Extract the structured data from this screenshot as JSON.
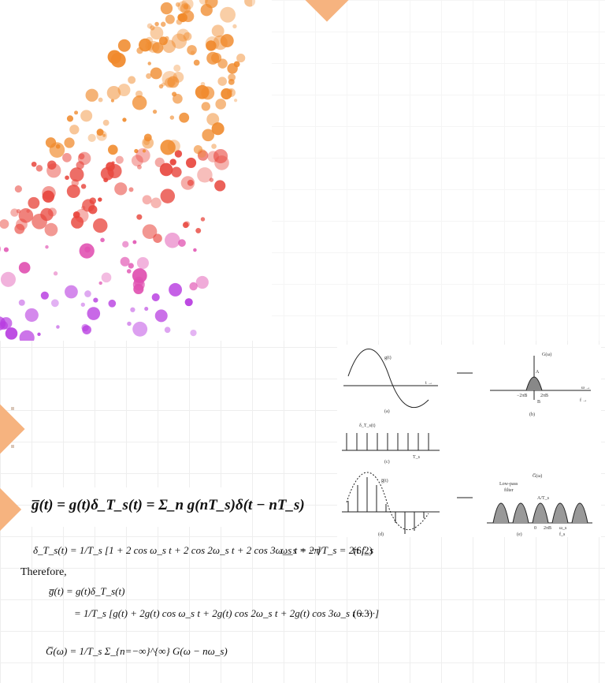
{
  "slide": {
    "therefore_label": "Therefore,"
  },
  "equations": {
    "main": "g̅(t) = g(t)δ_T_s(t) = Σ_n g(nT_s)δ(t − nT_s)",
    "eq_6_2_left": "δ_T_s(t) = 1/T_s [1 + 2 cos ω_s t + 2 cos 2ω_s t + 2 cos 3ω_s t + ···]",
    "eq_6_2_right": "ω_s = 2π/T_s = 2π f_s",
    "eq_6_2_num": "(6.2)",
    "eq_6_3_line1": "g̅(t) = g(t)δ_T_s(t)",
    "eq_6_3_line2": "= 1/T_s [g(t) + 2g(t) cos ω_s t + 2g(t) cos 2ω_s t + 2g(t) cos 3ω_s t + ···]",
    "eq_6_3_num": "(6.3)",
    "spectrum": "G̅(ω) = 1/T_s Σ_{n=−∞}^{∞} G(ω − nω_s)"
  },
  "figure": {
    "panel_labels": [
      "(a)",
      "(b)",
      "(c)",
      "(d)",
      "(e)"
    ],
    "signal_label": "g(t)",
    "spectrum_label": "G(ω)",
    "impulse_label": "δ_T_s(t)",
    "sampled_label": "g̅(t)",
    "sampled_spectrum_label": "G̅(ω)",
    "filter_label_line1": "Low-pass",
    "filter_label_line2": "filter",
    "amp_A": "A",
    "amp_A_over_Ts": "A/T_s",
    "axis_t": "t →",
    "axis_omega": "ω →",
    "axis_f": "f →",
    "tick_neg_2piB": "−2πB",
    "tick_2piB": "2πB",
    "tick_B": "B",
    "tick_0": "0",
    "tick_omega_s": "ω_s",
    "tick_f_s": "f_s",
    "period_label": "T_s"
  },
  "colors": {
    "accent_orange": "#f6b37f",
    "dot_orange": "#f08a2c",
    "dot_red": "#e8453c",
    "dot_pink": "#e04fb0",
    "dot_purple": "#b73be0"
  }
}
